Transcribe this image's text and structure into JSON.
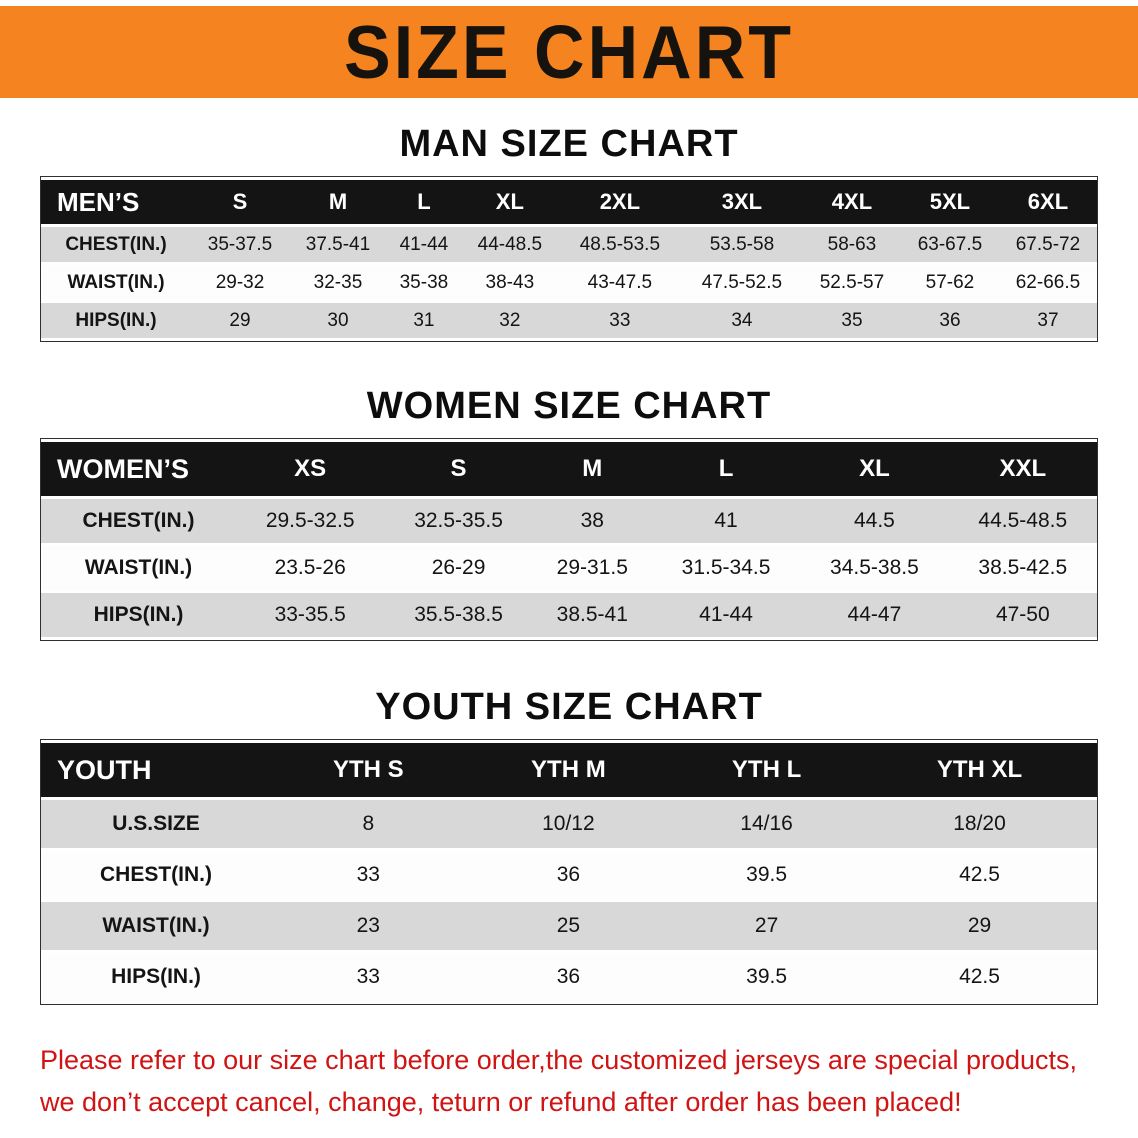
{
  "banner": {
    "title": "SIZE CHART"
  },
  "sections": [
    {
      "heading": "MAN SIZE CHART",
      "header": [
        "MEN’S",
        "S",
        "M",
        "L",
        "XL",
        "2XL",
        "3XL",
        "4XL",
        "5XL",
        "6XL"
      ],
      "rows": [
        [
          "CHEST(IN.)",
          "35-37.5",
          "37.5-41",
          "41-44",
          "44-48.5",
          "48.5-53.5",
          "53.5-58",
          "58-63",
          "63-67.5",
          "67.5-72"
        ],
        [
          "WAIST(IN.)",
          "29-32",
          "32-35",
          "35-38",
          "38-43",
          "43-47.5",
          "47.5-52.5",
          "52.5-57",
          "57-62",
          "62-66.5"
        ],
        [
          "HIPS(IN.)",
          "29",
          "30",
          "31",
          "32",
          "33",
          "34",
          "35",
          "36",
          "37"
        ]
      ]
    },
    {
      "heading": "WOMEN SIZE CHART",
      "header": [
        "WOMEN’S",
        "XS",
        "S",
        "M",
        "L",
        "XL",
        "XXL"
      ],
      "rows": [
        [
          "CHEST(IN.)",
          "29.5-32.5",
          "32.5-35.5",
          "38",
          "41",
          "44.5",
          "44.5-48.5"
        ],
        [
          "WAIST(IN.)",
          "23.5-26",
          "26-29",
          "29-31.5",
          "31.5-34.5",
          "34.5-38.5",
          "38.5-42.5"
        ],
        [
          "HIPS(IN.)",
          "33-35.5",
          "35.5-38.5",
          "38.5-41",
          "41-44",
          "44-47",
          "47-50"
        ]
      ]
    },
    {
      "heading": "YOUTH SIZE CHART",
      "header": [
        "YOUTH",
        "YTH S",
        "YTH M",
        "YTH L",
        "YTH XL"
      ],
      "rows": [
        [
          "U.S.SIZE",
          "8",
          "10/12",
          "14/16",
          "18/20"
        ],
        [
          "CHEST(IN.)",
          "33",
          "36",
          "39.5",
          "42.5"
        ],
        [
          "WAIST(IN.)",
          "23",
          "25",
          "27",
          "29"
        ],
        [
          "HIPS(IN.)",
          "33",
          "36",
          "39.5",
          "42.5"
        ]
      ]
    }
  ],
  "disclaimer": {
    "line1": "Please refer to our size chart before order,the customized jerseys are special products,",
    "line2": "we don’t accept cancel, change, teturn or refund after order has been placed!"
  },
  "colors": {
    "banner_orange": "#f5831f",
    "header_black": "#141414",
    "row_gray": "#d8d8d8",
    "disclaimer_red": "#d01414"
  }
}
